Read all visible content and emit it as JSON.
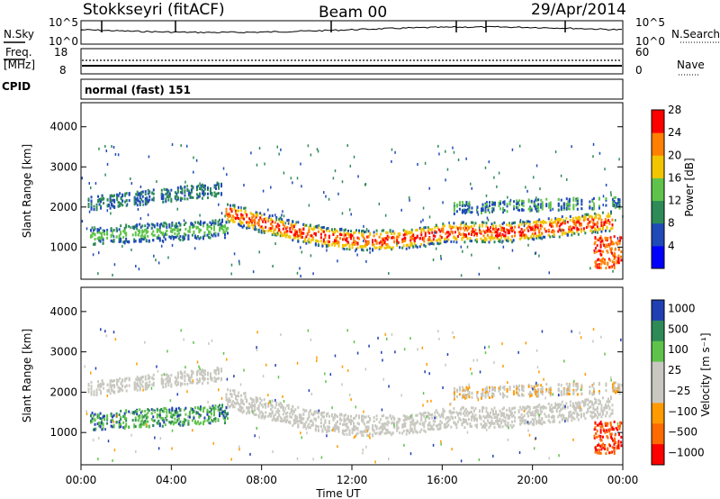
{
  "header": {
    "station": "Stokkseyri (fitACF)",
    "beam": "Beam 00",
    "date": "29/Apr/2014"
  },
  "chart_data": [
    {
      "id": "nsky",
      "type": "line",
      "left_label": "N.Sky",
      "right_label": "N.Search",
      "left_ticks": [
        "10^5",
        "10^0"
      ],
      "right_ticks": [
        "10^5",
        "10^0"
      ],
      "x_range_hours": [
        0,
        24
      ]
    },
    {
      "id": "freq",
      "type": "line",
      "left_label_line1": "Freq.",
      "left_label_line2": "[MHz]",
      "right_label": "Nave",
      "left_ticks": [
        "18",
        "8"
      ],
      "right_ticks": [
        "60",
        "0"
      ],
      "ylim_freq": [
        8,
        18
      ],
      "ylim_nave": [
        0,
        60
      ]
    },
    {
      "id": "cpid",
      "type": "table",
      "label": "CPID",
      "value": "normal (fast) 151"
    },
    {
      "id": "power",
      "type": "heatmap",
      "ylabel": "Slant Range [km]",
      "ylim": [
        200,
        4600
      ],
      "yticks": [
        "1000",
        "2000",
        "3000",
        "4000"
      ],
      "colorbar_label": "Power [dB]",
      "colorbar_ticks": [
        "4",
        "8",
        "12",
        "16",
        "20",
        "24",
        "28"
      ],
      "colorbar_colors": [
        "#0000ff",
        "#1f4ab8",
        "#2e8b57",
        "#5fc34b",
        "#f2c500",
        "#ff7f00",
        "#ff0000"
      ]
    },
    {
      "id": "velocity",
      "type": "heatmap",
      "ylabel": "Slant Range [km]",
      "ylim": [
        200,
        4600
      ],
      "yticks": [
        "1000",
        "2000",
        "3000",
        "4000"
      ],
      "colorbar_label": "Velocity [m s⁻¹]",
      "colorbar_ticks": [
        "1000",
        "500",
        "100",
        "25",
        "−25",
        "−100",
        "−500",
        "−1000"
      ],
      "colorbar_colors": [
        "#1f3fb3",
        "#2e8b57",
        "#5fc34b",
        "#c8c8c0",
        "#c8c8c0",
        "#ff9a00",
        "#ff6a00",
        "#ff0000"
      ],
      "xlabel": "Time UT",
      "xticks": [
        "00:00",
        "04:00",
        "08:00",
        "12:00",
        "16:00",
        "20:00",
        "00:00"
      ]
    }
  ]
}
